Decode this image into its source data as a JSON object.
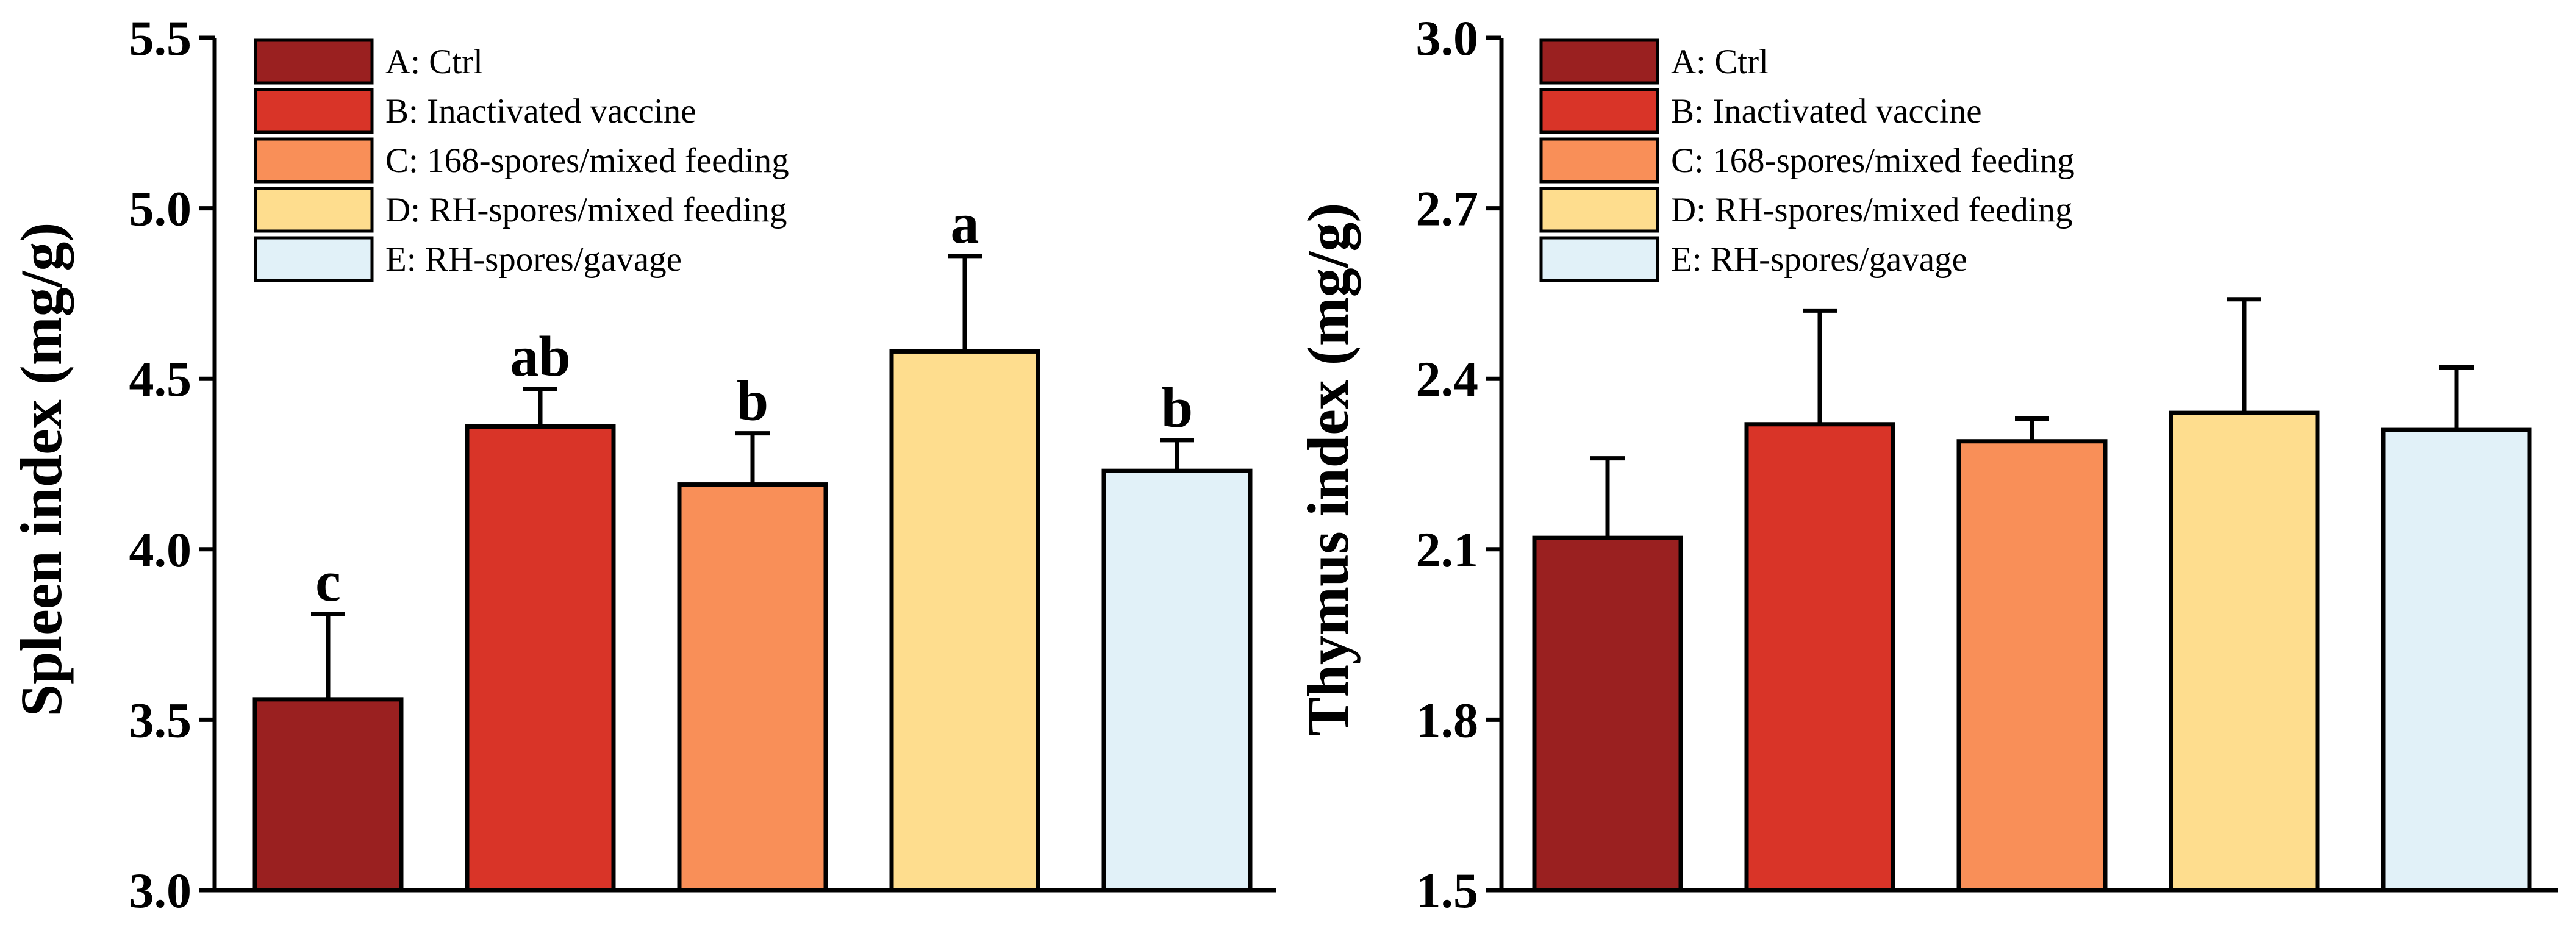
{
  "legend": [
    {
      "key": "A",
      "label": "A: Ctrl",
      "color": "#9A2020"
    },
    {
      "key": "B",
      "label": "B: Inactivated vaccine",
      "color": "#D93428"
    },
    {
      "key": "C",
      "label": "C: 168-spores/mixed feeding",
      "color": "#F98F58"
    },
    {
      "key": "D",
      "label": "D: RH-spores/mixed feeding",
      "color": "#FEDD8E"
    },
    {
      "key": "E",
      "label": "E: RH-spores/gavage",
      "color": "#E1F1F8"
    }
  ],
  "chart_data": [
    {
      "type": "bar",
      "id": "spleen",
      "ylabel": "Spleen index (mg/g)",
      "xlabel": "",
      "ylim": [
        3.0,
        5.5
      ],
      "yticks": [
        3.0,
        3.5,
        4.0,
        4.5,
        5.0,
        5.5
      ],
      "ytick_labels": [
        "3.0",
        "3.5",
        "4.0",
        "4.5",
        "5.0",
        "5.5"
      ],
      "categories": [
        "A",
        "B",
        "C",
        "D",
        "E"
      ],
      "values": [
        3.56,
        4.36,
        4.19,
        4.58,
        4.23
      ],
      "errors": [
        0.25,
        0.11,
        0.15,
        0.28,
        0.09
      ],
      "annotations": [
        "c",
        "ab",
        "b",
        "a",
        "b"
      ]
    },
    {
      "type": "bar",
      "id": "thymus",
      "ylabel": "Thymus index (mg/g)",
      "xlabel": "",
      "ylim": [
        1.5,
        3.0
      ],
      "yticks": [
        1.5,
        1.8,
        2.1,
        2.4,
        2.7,
        3.0
      ],
      "ytick_labels": [
        "1.5",
        "1.8",
        "2.1",
        "2.4",
        "2.7",
        "3.0"
      ],
      "categories": [
        "A",
        "B",
        "C",
        "D",
        "E"
      ],
      "values": [
        2.12,
        2.32,
        2.29,
        2.34,
        2.31
      ],
      "errors": [
        0.14,
        0.2,
        0.04,
        0.2,
        0.11
      ],
      "annotations": [
        "",
        "",
        "",
        "",
        ""
      ]
    }
  ]
}
